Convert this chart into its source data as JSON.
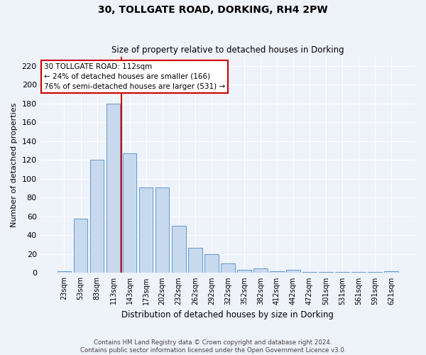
{
  "title": "30, TOLLGATE ROAD, DORKING, RH4 2PW",
  "subtitle": "Size of property relative to detached houses in Dorking",
  "xlabel": "Distribution of detached houses by size in Dorking",
  "ylabel": "Number of detached properties",
  "bar_color": "#c9d9ed",
  "bar_edge_color": "#5b9bd5",
  "vline_color": "#cc0000",
  "categories": [
    "23sqm",
    "53sqm",
    "83sqm",
    "113sqm",
    "143sqm",
    "173sqm",
    "202sqm",
    "232sqm",
    "262sqm",
    "292sqm",
    "322sqm",
    "352sqm",
    "382sqm",
    "412sqm",
    "442sqm",
    "472sqm",
    "501sqm",
    "531sqm",
    "561sqm",
    "591sqm",
    "621sqm"
  ],
  "values": [
    2,
    58,
    120,
    180,
    127,
    91,
    91,
    50,
    27,
    20,
    10,
    3,
    5,
    2,
    3,
    1,
    1,
    1,
    1,
    1,
    2
  ],
  "ylim": [
    0,
    230
  ],
  "yticks": [
    0,
    20,
    40,
    60,
    80,
    100,
    120,
    140,
    160,
    180,
    200,
    220
  ],
  "vline_pos": 3.5,
  "annotation_title": "30 TOLLGATE ROAD: 112sqm",
  "annotation_line1": "← 24% of detached houses are smaller (166)",
  "annotation_line2": "76% of semi-detached houses are larger (531) →",
  "footer1": "Contains HM Land Registry data © Crown copyright and database right 2024.",
  "footer2": "Contains public sector information licensed under the Open Government Licence v3.0.",
  "background_color": "#eef2f9",
  "plot_bg_color": "#eef2f9",
  "grid_color": "#ffffff"
}
